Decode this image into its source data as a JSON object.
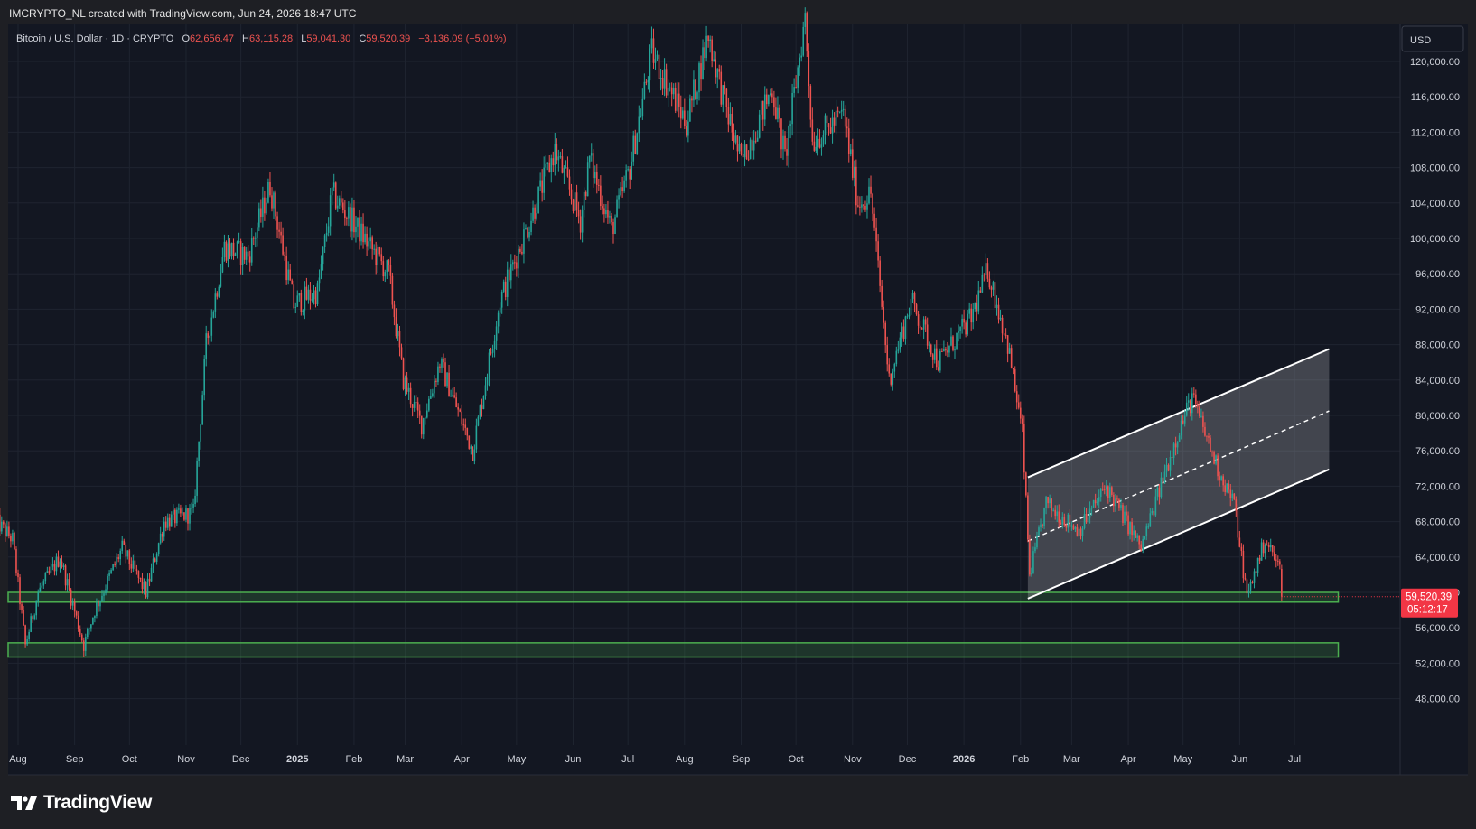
{
  "header": {
    "attribution": "IMCRYPTO_NL created with TradingView.com, Jun 24, 2026 18:47 UTC"
  },
  "legend": {
    "symbol": "Bitcoin / U.S. Dollar · 1D · CRYPTO",
    "o_label": "O",
    "o_value": "62,656.47",
    "h_label": "H",
    "h_value": "63,115.28",
    "l_label": "L",
    "l_value": "59,041.30",
    "c_label": "C",
    "c_value": "59,520.39",
    "change": "−3,136.09 (−5.01%)"
  },
  "currency_button": "USD",
  "price_tag": {
    "price": "59,520.39",
    "countdown": "05:12:17"
  },
  "brand": {
    "name": "TradingView"
  },
  "colors": {
    "background": "#131722",
    "up": "#26a69a",
    "down": "#ef5350",
    "zone": "#4caf50",
    "channel": "#ffffff",
    "grid": "#1f2430",
    "price_tag": "#f23645"
  },
  "chart_data": {
    "type": "candlestick",
    "symbol": "Bitcoin / U.S. Dollar",
    "interval": "1D",
    "ylim": [
      47000,
      124500
    ],
    "y_ticks": [
      48000,
      52000,
      56000,
      60000,
      64000,
      68000,
      72000,
      76000,
      80000,
      84000,
      88000,
      92000,
      96000,
      100000,
      104000,
      108000,
      112000,
      116000,
      120000
    ],
    "y_tick_labels": [
      "48,000.00",
      "52,000.00",
      "56,000.00",
      "60,000.00",
      "64,000.00",
      "68,000.00",
      "72,000.00",
      "76,000.00",
      "80,000.00",
      "84,000.00",
      "88,000.00",
      "92,000.00",
      "96,000.00",
      "100,000.00",
      "104,000.00",
      "108,000.00",
      "112,000.00",
      "116,000.00",
      "120,000.00"
    ],
    "x_labels": [
      {
        "text": "Aug",
        "date": "2024-08-01",
        "bold": false
      },
      {
        "text": "Sep",
        "date": "2024-09-01",
        "bold": false
      },
      {
        "text": "Oct",
        "date": "2024-10-01",
        "bold": false
      },
      {
        "text": "Nov",
        "date": "2024-11-01",
        "bold": false
      },
      {
        "text": "Dec",
        "date": "2024-12-01",
        "bold": false
      },
      {
        "text": "2025",
        "date": "2025-01-01",
        "bold": true
      },
      {
        "text": "Feb",
        "date": "2025-02-01",
        "bold": false
      },
      {
        "text": "Mar",
        "date": "2025-03-01",
        "bold": false
      },
      {
        "text": "Apr",
        "date": "2025-04-01",
        "bold": false
      },
      {
        "text": "May",
        "date": "2025-05-01",
        "bold": false
      },
      {
        "text": "Jun",
        "date": "2025-06-01",
        "bold": false
      },
      {
        "text": "Jul",
        "date": "2025-07-01",
        "bold": false
      },
      {
        "text": "Aug",
        "date": "2025-08-01",
        "bold": false
      },
      {
        "text": "Sep",
        "date": "2025-09-01",
        "bold": false
      },
      {
        "text": "Oct",
        "date": "2025-10-01",
        "bold": false
      },
      {
        "text": "Nov",
        "date": "2025-11-01",
        "bold": false
      },
      {
        "text": "Dec",
        "date": "2025-12-01",
        "bold": false
      },
      {
        "text": "2026",
        "date": "2026-01-01",
        "bold": true
      },
      {
        "text": "Feb",
        "date": "2026-02-01",
        "bold": false
      },
      {
        "text": "Mar",
        "date": "2026-03-01",
        "bold": false
      },
      {
        "text": "Apr",
        "date": "2026-04-01",
        "bold": false
      },
      {
        "text": "May",
        "date": "2026-05-01",
        "bold": false
      },
      {
        "text": "Jun",
        "date": "2026-06-01",
        "bold": false
      },
      {
        "text": "Jul",
        "date": "2026-07-01",
        "bold": false
      }
    ],
    "close_path": [
      [
        "2024-07-20",
        68000
      ],
      [
        "2024-07-29",
        66000
      ],
      [
        "2024-08-05",
        54000
      ],
      [
        "2024-08-12",
        60000
      ],
      [
        "2024-08-24",
        64000
      ],
      [
        "2024-09-06",
        54000
      ],
      [
        "2024-09-12",
        58000
      ],
      [
        "2024-09-27",
        65000
      ],
      [
        "2024-10-10",
        60000
      ],
      [
        "2024-10-20",
        68000
      ],
      [
        "2024-11-05",
        69000
      ],
      [
        "2024-11-12",
        88000
      ],
      [
        "2024-11-22",
        99000
      ],
      [
        "2024-12-05",
        98000
      ],
      [
        "2024-12-17",
        106000
      ],
      [
        "2024-12-30",
        92500
      ],
      [
        "2025-01-12",
        94000
      ],
      [
        "2025-01-20",
        105000
      ],
      [
        "2025-01-31",
        102000
      ],
      [
        "2025-02-20",
        96000
      ],
      [
        "2025-02-28",
        84000
      ],
      [
        "2025-03-10",
        79000
      ],
      [
        "2025-03-20",
        86000
      ],
      [
        "2025-04-07",
        76000
      ],
      [
        "2025-04-22",
        93000
      ],
      [
        "2025-05-10",
        103000
      ],
      [
        "2025-05-22",
        110000
      ],
      [
        "2025-06-05",
        102000
      ],
      [
        "2025-06-10",
        109000
      ],
      [
        "2025-06-22",
        101000
      ],
      [
        "2025-07-02",
        108000
      ],
      [
        "2025-07-14",
        121000
      ],
      [
        "2025-08-02",
        113000
      ],
      [
        "2025-08-14",
        123000
      ],
      [
        "2025-08-22",
        116000
      ],
      [
        "2025-09-01",
        108500
      ],
      [
        "2025-09-18",
        117000
      ],
      [
        "2025-09-25",
        109000
      ],
      [
        "2025-10-06",
        125000
      ],
      [
        "2025-10-10",
        111000
      ],
      [
        "2025-10-27",
        114000
      ],
      [
        "2025-11-04",
        104000
      ],
      [
        "2025-11-11",
        105000
      ],
      [
        "2025-11-21",
        84000
      ],
      [
        "2025-12-03",
        93000
      ],
      [
        "2025-12-18",
        86000
      ],
      [
        "2026-01-05",
        91000
      ],
      [
        "2026-01-14",
        96500
      ],
      [
        "2026-01-25",
        88000
      ],
      [
        "2026-02-02",
        78000
      ],
      [
        "2026-02-06",
        62000
      ],
      [
        "2026-02-15",
        70000
      ],
      [
        "2026-03-05",
        67000
      ],
      [
        "2026-03-20",
        72000
      ],
      [
        "2026-04-08",
        65000
      ],
      [
        "2026-04-28",
        78000
      ],
      [
        "2026-05-06",
        82000
      ],
      [
        "2026-05-20",
        74000
      ],
      [
        "2026-05-29",
        70000
      ],
      [
        "2026-06-05",
        59500
      ],
      [
        "2026-06-15",
        66000
      ],
      [
        "2026-06-23",
        62656.47
      ],
      [
        "2026-06-24",
        59520.39
      ]
    ],
    "last_candle": {
      "open": 62656.47,
      "high": 63115.28,
      "low": 59041.3,
      "close": 59520.39
    },
    "drawings": {
      "support_zones": [
        {
          "top": 60000,
          "bottom": 58900,
          "from": "2024-07-20",
          "to": "2026-07-25"
        },
        {
          "top": 54300,
          "bottom": 52700,
          "from": "2024-07-20",
          "to": "2026-07-25"
        }
      ],
      "channel": {
        "from": "2026-02-05",
        "to": "2026-07-20",
        "upper": [
          73000,
          87500
        ],
        "mid": [
          65800,
          80500
        ],
        "lower": [
          59300,
          73900
        ]
      }
    }
  }
}
